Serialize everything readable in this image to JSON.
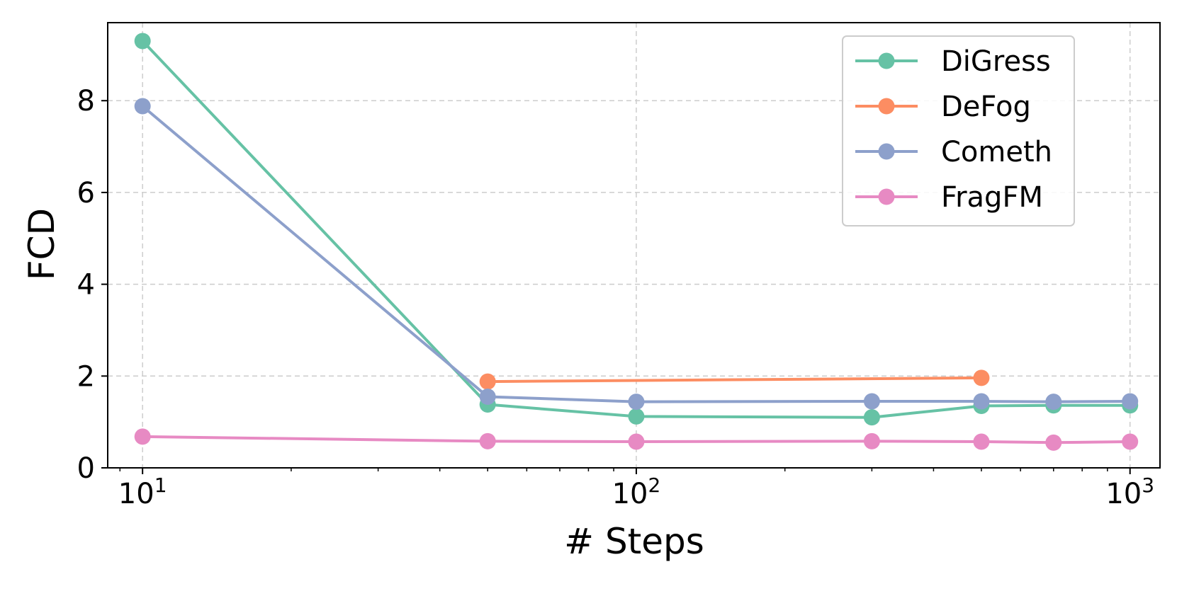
{
  "chart_data": {
    "type": "line",
    "title": "",
    "xlabel": "# Steps",
    "ylabel": "FCD",
    "xscale": "log",
    "xlim": [
      8.5,
      1150
    ],
    "ylim": [
      0,
      9.7
    ],
    "x_ticks": [
      {
        "value": 10,
        "base": "10",
        "exp": "1"
      },
      {
        "value": 100,
        "base": "10",
        "exp": "2"
      },
      {
        "value": 1000,
        "base": "10",
        "exp": "3"
      }
    ],
    "y_ticks": [
      0,
      2,
      4,
      6,
      8
    ],
    "grid": true,
    "legend_position": "top-right",
    "series": [
      {
        "name": "DiGress",
        "color": "#66c2a5",
        "x": [
          10,
          50,
          100,
          300,
          500,
          700,
          1000
        ],
        "y": [
          9.3,
          1.38,
          1.12,
          1.1,
          1.35,
          1.36,
          1.36
        ]
      },
      {
        "name": "DeFog",
        "color": "#fc8d62",
        "x": [
          50,
          500
        ],
        "y": [
          1.88,
          1.96
        ]
      },
      {
        "name": "Cometh",
        "color": "#8da0cb",
        "x": [
          10,
          50,
          100,
          300,
          500,
          700,
          1000
        ],
        "y": [
          7.88,
          1.55,
          1.44,
          1.45,
          1.45,
          1.44,
          1.45
        ]
      },
      {
        "name": "FragFM",
        "color": "#e78ac3",
        "x": [
          10,
          50,
          100,
          300,
          500,
          700,
          1000
        ],
        "y": [
          0.68,
          0.58,
          0.57,
          0.58,
          0.57,
          0.55,
          0.57
        ]
      }
    ]
  }
}
